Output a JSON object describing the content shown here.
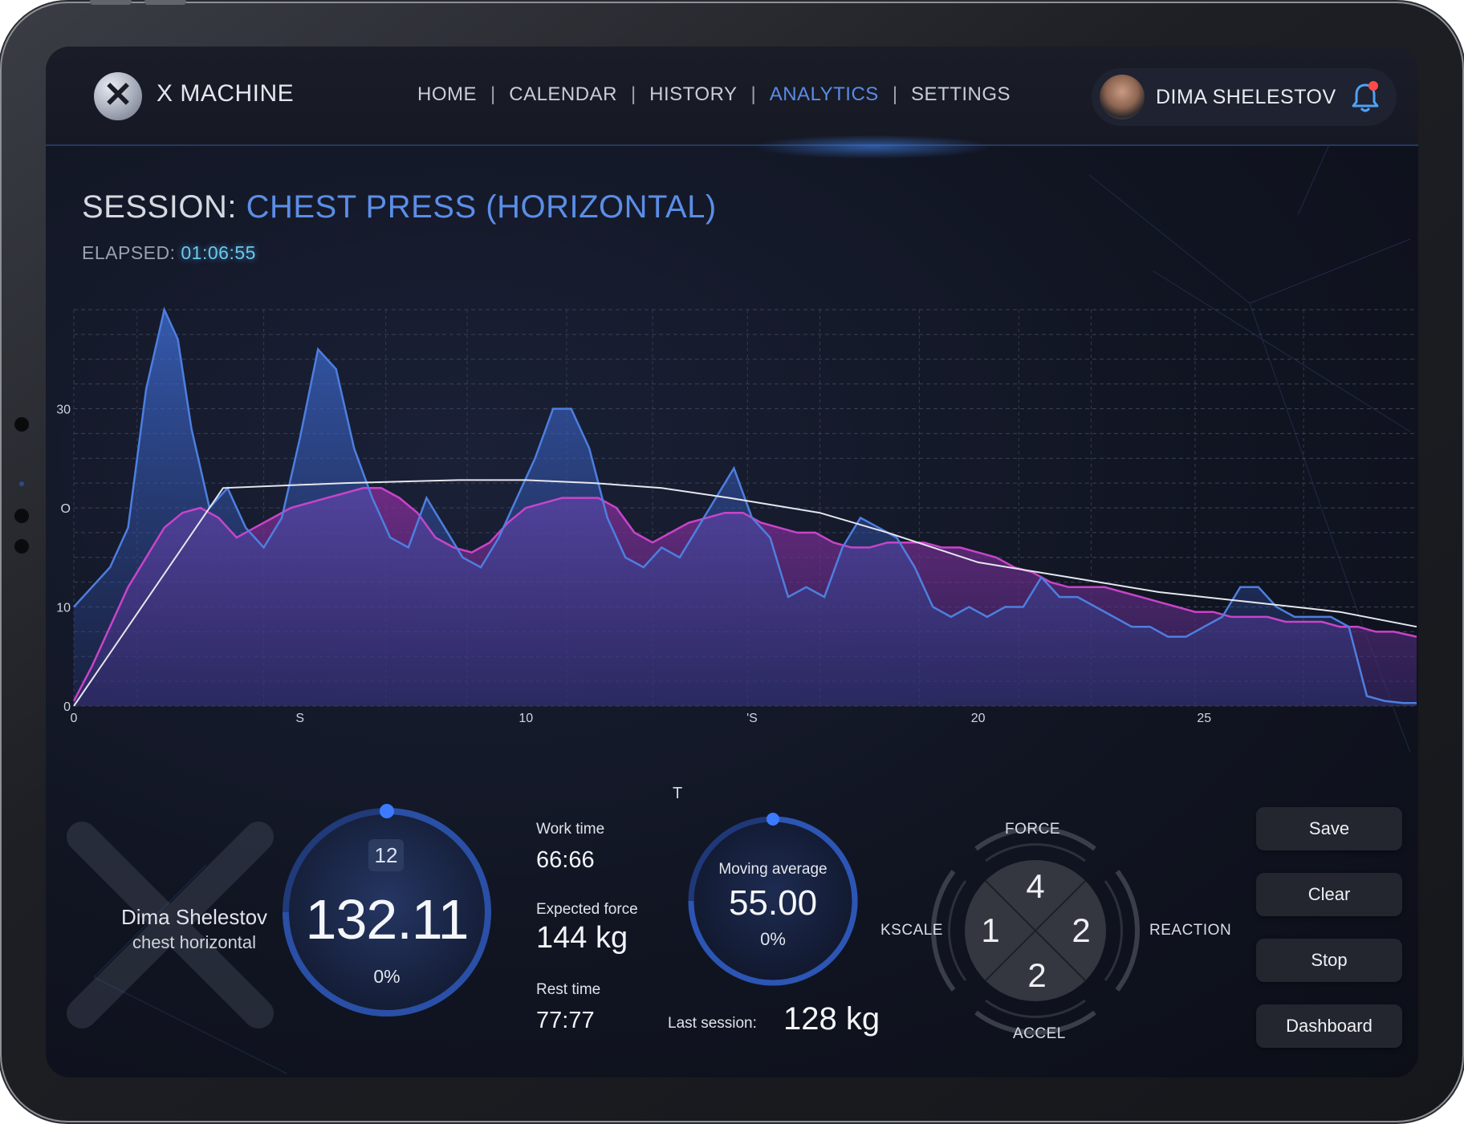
{
  "app": {
    "logo_glyph": "✕",
    "name": "X MACHINE"
  },
  "nav": {
    "items": [
      {
        "label": "HOME",
        "active": false
      },
      {
        "label": "CALENDAR",
        "active": false
      },
      {
        "label": "HISTORY",
        "active": false
      },
      {
        "label": "ANALYTICS",
        "active": true
      },
      {
        "label": "SETTINGS",
        "active": false
      }
    ],
    "separator": "|"
  },
  "user": {
    "name": "DIMA SHELESTOV",
    "has_notification": true
  },
  "session": {
    "prefix": "SESSION:",
    "name": "CHEST PRESS (HORIZONTAL)",
    "elapsed_label": "ELAPSED:",
    "elapsed_value": "01:06:55"
  },
  "chart_data": {
    "type": "area",
    "xlabel": "T",
    "ylabel": "",
    "x_tick_labels": [
      "0",
      "S",
      "10",
      "'S",
      "20",
      "25"
    ],
    "x_ticks": [
      0,
      5,
      10,
      15,
      20,
      25
    ],
    "y_tick_labels": [
      "0",
      "10",
      "O",
      "30"
    ],
    "y_ticks": [
      0,
      10,
      20,
      30
    ],
    "xlim": [
      0,
      29.7
    ],
    "ylim": [
      0,
      40
    ],
    "grid": true,
    "series": [
      {
        "style": "blue-area",
        "color": "#4d7fe0",
        "x": [
          0,
          0.4,
          0.8,
          1.2,
          1.6,
          2.0,
          2.3,
          2.6,
          3.0,
          3.4,
          3.8,
          4.2,
          4.6,
          5.0,
          5.4,
          5.8,
          6.2,
          6.6,
          7.0,
          7.4,
          7.8,
          8.2,
          8.6,
          9.0,
          9.4,
          9.8,
          10.2,
          10.6,
          11.0,
          11.4,
          11.8,
          12.2,
          12.6,
          13.0,
          13.4,
          13.8,
          14.2,
          14.6,
          15.0,
          15.4,
          15.8,
          16.2,
          16.6,
          17.0,
          17.4,
          17.8,
          18.2,
          18.6,
          19.0,
          19.4,
          19.8,
          20.2,
          20.6,
          21.0,
          21.4,
          21.8,
          22.2,
          22.6,
          23.0,
          23.4,
          23.8,
          24.2,
          24.6,
          25.0,
          25.4,
          25.8,
          26.2,
          26.6,
          27.0,
          27.4,
          27.8,
          28.2,
          28.6,
          29.0,
          29.4,
          29.7
        ],
        "y": [
          10,
          12,
          14,
          18,
          32,
          40,
          37,
          28,
          20,
          22,
          18,
          16,
          19,
          27,
          36,
          34,
          26,
          21,
          17,
          16,
          21,
          18,
          15,
          14,
          17,
          21,
          25,
          30,
          30,
          26,
          19,
          15,
          14,
          16,
          15,
          18,
          21,
          24,
          19,
          17,
          11,
          12,
          11,
          16,
          19,
          18,
          17,
          14,
          10,
          9,
          10,
          9,
          10,
          10,
          13,
          11,
          11,
          10,
          9,
          8,
          8,
          7,
          7,
          8,
          9,
          12,
          12,
          10,
          9,
          9,
          9,
          8,
          1,
          0.5,
          0.3,
          0.3
        ]
      },
      {
        "style": "magenta-area",
        "color": "#c944c9",
        "x": [
          0,
          0.4,
          0.8,
          1.2,
          1.6,
          2.0,
          2.4,
          2.8,
          3.2,
          3.6,
          4.0,
          4.4,
          4.8,
          5.2,
          5.6,
          6.0,
          6.4,
          6.8,
          7.2,
          7.6,
          8.0,
          8.4,
          8.8,
          9.2,
          9.6,
          10.0,
          10.4,
          10.8,
          11.2,
          11.6,
          12.0,
          12.4,
          12.8,
          13.2,
          13.6,
          14.0,
          14.4,
          14.8,
          15.2,
          15.6,
          16.0,
          16.4,
          16.8,
          17.2,
          17.6,
          18.0,
          18.4,
          18.8,
          19.2,
          19.6,
          20.0,
          20.4,
          20.8,
          21.2,
          21.6,
          22.0,
          22.4,
          22.8,
          23.2,
          23.6,
          24.0,
          24.4,
          24.8,
          25.2,
          25.6,
          26.0,
          26.4,
          26.8,
          27.2,
          27.6,
          28.0,
          28.4,
          28.8,
          29.2,
          29.7
        ],
        "y": [
          0.5,
          4,
          8,
          12,
          15,
          18,
          19.5,
          20,
          19,
          17,
          18,
          19,
          20,
          20.5,
          21,
          21.5,
          22,
          22,
          21,
          19.5,
          17,
          16,
          15.5,
          16.5,
          18.5,
          20,
          20.5,
          21,
          21,
          21,
          20,
          17.5,
          16.5,
          17.5,
          18.5,
          19,
          19.5,
          19.5,
          18.5,
          18,
          17.5,
          17.5,
          16.5,
          16,
          16,
          16.5,
          16.5,
          16.5,
          16,
          16,
          15.5,
          15,
          14,
          13.5,
          12.5,
          12,
          12,
          12,
          11.5,
          11,
          10.5,
          10,
          9.5,
          9.5,
          9,
          9,
          9,
          8.5,
          8.5,
          8.5,
          8,
          8,
          7.5,
          7.5,
          7
        ]
      },
      {
        "style": "white-line",
        "color": "#e6e6ee",
        "x": [
          0,
          3.3,
          6.0,
          8.5,
          10.0,
          11.5,
          13.0,
          14.5,
          16.5,
          18.0,
          20.0,
          22.0,
          24.0,
          26.0,
          28.0,
          29.7
        ],
        "y": [
          0,
          22,
          22.5,
          22.8,
          22.8,
          22.5,
          22,
          21,
          19.5,
          17.5,
          14.5,
          13,
          11.5,
          10.5,
          9.5,
          8
        ]
      }
    ]
  },
  "stats": {
    "big_gauge": {
      "rep": "12",
      "value": "132.11",
      "percent": "0%",
      "progress": 0
    },
    "work_time_label": "Work time",
    "work_time_value": "66:66",
    "expected_force_label": "Expected force",
    "expected_force_value": "144 kg",
    "rest_time_label": "Rest time",
    "rest_time_value": "77:77",
    "moving_avg_label": "Moving average",
    "moving_avg_value": "55.00",
    "moving_avg_percent": "0%",
    "last_session_label": "Last session:",
    "last_session_value": "128 kg"
  },
  "athlete": {
    "name": "Dima Shelestov",
    "exercise": "chest horizontal"
  },
  "dial": {
    "top_label": "FORCE",
    "left_label": "KSCALE",
    "right_label": "REACTION",
    "bottom_label": "ACCEL",
    "top_value": "4",
    "left_value": "1",
    "right_value": "2",
    "bottom_value": "2"
  },
  "actions": {
    "save": "Save",
    "clear": "Clear",
    "stop": "Stop",
    "dashboard": "Dashboard"
  },
  "colors": {
    "accent_blue": "#5b8ee6",
    "elapsed_cyan": "#6cc7f0",
    "magenta": "#c944c9",
    "notification_red": "#ff4a4a"
  },
  "icons": {
    "logo": "x-machine-logo-icon",
    "bell": "bell-icon",
    "avatar": "user-avatar"
  }
}
